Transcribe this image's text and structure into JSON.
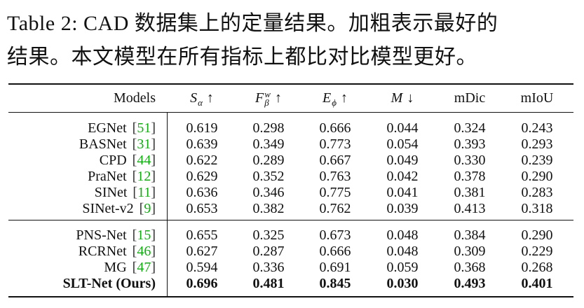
{
  "caption_lines": [
    "Table 2: CAD 数据集上的定量结果。加粗表示最好的",
    "结果。本文模型在所有指标上都比对比模型更好。"
  ],
  "table": {
    "header": [
      "Models",
      {
        "text": "S",
        "sub": "α",
        "arrow": "↑"
      },
      {
        "text": "F",
        "sup": "w",
        "sub": "β",
        "arrow": "↑"
      },
      {
        "text": "E",
        "sub": "ϕ",
        "arrow": "↑"
      },
      {
        "text": "M",
        "arrow": "↓"
      },
      "mDic",
      "mIoU"
    ],
    "groups": [
      [
        {
          "model": "EGNet",
          "cite": "[51]",
          "values": [
            "0.619",
            "0.298",
            "0.666",
            "0.044",
            "0.324",
            "0.243"
          ]
        },
        {
          "model": "BASNet",
          "cite": "[31]",
          "values": [
            "0.639",
            "0.349",
            "0.773",
            "0.054",
            "0.393",
            "0.293"
          ]
        },
        {
          "model": "CPD",
          "cite": "[44]",
          "values": [
            "0.622",
            "0.289",
            "0.667",
            "0.049",
            "0.330",
            "0.239"
          ]
        },
        {
          "model": "PraNet",
          "cite": "[12]",
          "values": [
            "0.629",
            "0.352",
            "0.763",
            "0.042",
            "0.378",
            "0.290"
          ]
        },
        {
          "model": "SINet",
          "cite": "[11]",
          "values": [
            "0.636",
            "0.346",
            "0.775",
            "0.041",
            "0.381",
            "0.283"
          ]
        },
        {
          "model": "SINet-v2",
          "cite": "[9]",
          "values": [
            "0.653",
            "0.382",
            "0.762",
            "0.039",
            "0.413",
            "0.318"
          ]
        }
      ],
      [
        {
          "model": "PNS-Net",
          "cite": "[15]",
          "values": [
            "0.655",
            "0.325",
            "0.673",
            "0.048",
            "0.384",
            "0.290"
          ]
        },
        {
          "model": "RCRNet",
          "cite": "[46]",
          "values": [
            "0.627",
            "0.287",
            "0.666",
            "0.048",
            "0.309",
            "0.229"
          ]
        },
        {
          "model": "MG",
          "cite": "[47]",
          "values": [
            "0.594",
            "0.336",
            "0.691",
            "0.059",
            "0.368",
            "0.268"
          ]
        },
        {
          "model": "SLT-Net (Ours)",
          "bold": true,
          "values": [
            "0.696",
            "0.481",
            "0.845",
            "0.030",
            "0.493",
            "0.401"
          ]
        }
      ]
    ]
  }
}
